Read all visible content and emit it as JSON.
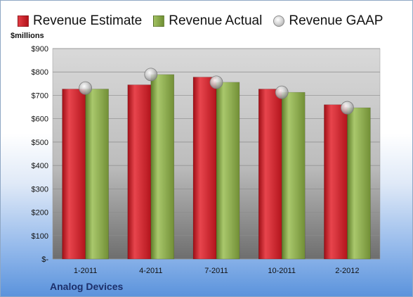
{
  "chart_data": {
    "type": "bar",
    "categories": [
      "1-2011",
      "4-2011",
      "7-2011",
      "10-2011",
      "2-2012"
    ],
    "series": [
      {
        "name": "Revenue Estimate",
        "values": [
          727,
          745,
          778,
          727,
          660
        ],
        "color": "#cf2029"
      },
      {
        "name": "Revenue Actual",
        "values": [
          727,
          789,
          756,
          713,
          647
        ],
        "color": "#8aad48"
      },
      {
        "name": "Revenue GAAP",
        "values": [
          731,
          789,
          756,
          713,
          647
        ],
        "marker": "sphere",
        "color": "#c8c8c8"
      }
    ],
    "yticks": [
      "$-",
      "$100",
      "$200",
      "$300",
      "$400",
      "$500",
      "$600",
      "$700",
      "$800",
      "$900"
    ],
    "ylim": [
      0,
      900
    ],
    "ylabel": "$millions",
    "grid": true,
    "legend_position": "top"
  },
  "company": "Analog Devices"
}
